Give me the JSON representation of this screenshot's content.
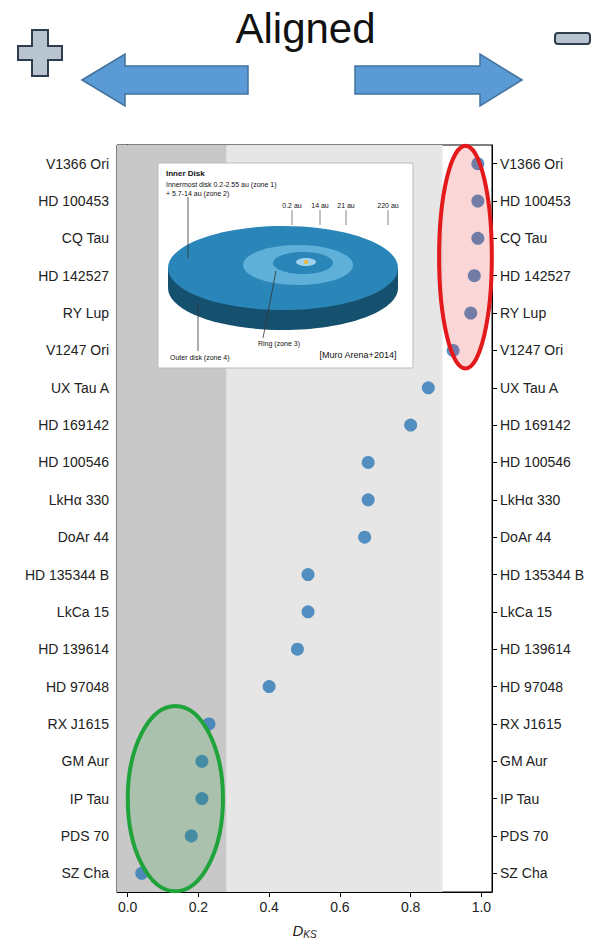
{
  "chart_data": {
    "type": "scatter",
    "title": "Aligned",
    "x_label": {
      "text": "D",
      "subscript": "KS"
    },
    "orientation": "horizontal",
    "categories": [
      "V1366 Ori",
      "HD 100453",
      "CQ Tau",
      "HD 142527",
      "RY Lup",
      "V1247 Ori",
      "UX Tau A",
      "HD 169142",
      "HD 100546",
      "LkHα 330",
      "DoAr 44",
      "HD 135344 B",
      "LkCa 15",
      "HD 139614",
      "HD 97048",
      "RX J1615",
      "GM Aur",
      "IP Tau",
      "PDS 70",
      "SZ Cha"
    ],
    "values": [
      0.99,
      0.99,
      0.99,
      0.98,
      0.97,
      0.92,
      0.85,
      0.8,
      0.68,
      0.68,
      0.67,
      0.51,
      0.51,
      0.48,
      0.4,
      0.23,
      0.21,
      0.21,
      0.18,
      0.04
    ],
    "color": "#2e78b7",
    "marker": "circle",
    "xlim": [
      -0.03,
      1.03
    ],
    "xticks": [
      {
        "value": 0,
        "label": "0.0"
      },
      {
        "value": 0.2,
        "label": "0.2"
      },
      {
        "value": 0.4,
        "label": "0.4"
      },
      {
        "value": 0.6,
        "label": "0.6"
      },
      {
        "value": 0.8,
        "label": "0.8"
      },
      {
        "value": 1,
        "label": "1.0"
      }
    ],
    "grid": false,
    "bands": [
      {
        "from": -0.03,
        "to": 0.28,
        "color": "#c8c8c8"
      },
      {
        "from": 0.28,
        "to": 0.89,
        "color": "#e6e6e6"
      }
    ],
    "highlights": [
      {
        "from": "V1366 Ori",
        "to": "V1247 Ori",
        "color": "#e3191c"
      },
      {
        "from": "RX J1615",
        "to": "SZ Cha",
        "color": "#1fa33a"
      }
    ],
    "inset": {
      "heading": "Inner Disk",
      "description": [
        "Innermost disk 0.2-2.55 au (zone 1)",
        "+ 5.7-14 au (zone 2)"
      ],
      "radii": [
        "0.2 au",
        "14 au",
        "21 au",
        "220 au"
      ],
      "ring": "Ring (zone 3)",
      "outer": "Outer disk (zone 4)",
      "credit": "[Muro Arena+2014]"
    }
  }
}
